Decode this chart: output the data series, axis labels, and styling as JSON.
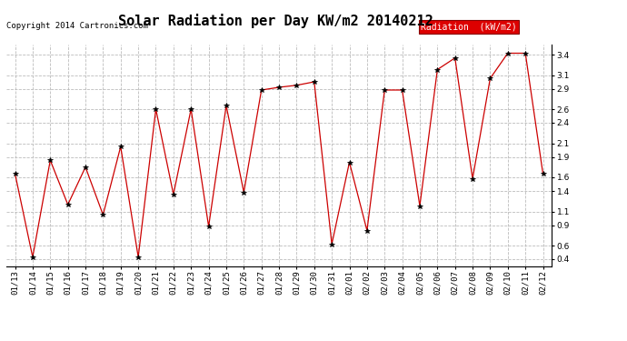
{
  "title": "Solar Radiation per Day KW/m2 20140212",
  "copyright": "Copyright 2014 Cartronics.com",
  "legend_label": "Radiation  (kW/m2)",
  "dates": [
    "01/13",
    "01/14",
    "01/15",
    "01/16",
    "01/17",
    "01/18",
    "01/19",
    "01/20",
    "01/21",
    "01/22",
    "01/23",
    "01/24",
    "01/25",
    "01/26",
    "01/27",
    "01/28",
    "01/29",
    "01/30",
    "01/31",
    "02/01",
    "02/02",
    "02/03",
    "02/04",
    "02/05",
    "02/06",
    "02/07",
    "02/08",
    "02/09",
    "02/10",
    "02/11",
    "02/12"
  ],
  "values": [
    1.65,
    0.43,
    1.85,
    1.2,
    1.75,
    1.05,
    2.05,
    0.43,
    2.6,
    1.35,
    2.6,
    0.88,
    2.65,
    1.38,
    2.88,
    2.92,
    2.95,
    3.0,
    0.62,
    1.82,
    0.82,
    2.88,
    2.88,
    1.18,
    3.18,
    3.35,
    1.58,
    3.05,
    3.42,
    3.42,
    1.65
  ],
  "line_color": "#cc0000",
  "marker": "*",
  "marker_color": "#000000",
  "marker_size": 4,
  "ylim": [
    0.3,
    3.55
  ],
  "yticks": [
    0.4,
    0.6,
    0.9,
    1.1,
    1.4,
    1.6,
    1.9,
    2.1,
    2.4,
    2.6,
    2.9,
    3.1,
    3.4
  ],
  "grid_color": "#bbbbbb",
  "grid_style": "--",
  "bg_color": "#ffffff",
  "title_fontsize": 11,
  "copyright_fontsize": 6.5,
  "tick_fontsize": 6.5,
  "legend_fontsize": 7,
  "legend_bg": "#dd0000",
  "legend_text_color": "#ffffff"
}
